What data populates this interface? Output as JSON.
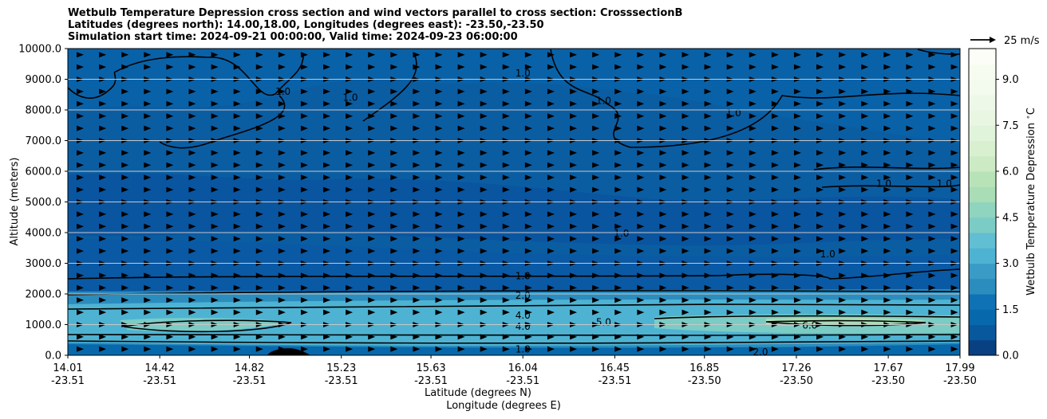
{
  "title": {
    "line1": "Wetbulb Temperature Depression cross section and wind vectors parallel to cross section: CrosssectionB",
    "line2": "Latitudes (degrees north): 14.00,18.00, Longitudes (degrees east): -23.50,-23.50",
    "line3": "Simulation start time: 2024-09-21 00:00:00, Valid time: 2024-09-23 06:00:00"
  },
  "quiver_key_label": "25 m/s",
  "colors": {
    "dark_blue": "#084b8e",
    "mid_blue": "#0868ac",
    "light_blue": "#2b8cbe",
    "cyan": "#4eb3d3",
    "teal": "#7bccc4",
    "green": "#a8ddb5",
    "pale_green": "#e0f3db"
  },
  "chart_data": {
    "type": "heatmap",
    "subtype": "filled contour cross-section with line contours and wind vectors",
    "xlabel": "Latitude (degrees N)",
    "xlabel2": "Longitude (degrees E)",
    "ylabel": "Altitude (meters)",
    "colorbar_label": "Wetbulb Temperature Depression $^\\circ$C",
    "xlim": [
      14.01,
      17.99
    ],
    "ylim": [
      0,
      10000
    ],
    "x_ticks": [
      {
        "lat": "14.01",
        "lon": "-23.51",
        "value": 14.01
      },
      {
        "lat": "14.42",
        "lon": "-23.51",
        "value": 14.42
      },
      {
        "lat": "14.82",
        "lon": "-23.51",
        "value": 14.82
      },
      {
        "lat": "15.23",
        "lon": "-23.51",
        "value": 15.23
      },
      {
        "lat": "15.63",
        "lon": "-23.51",
        "value": 15.63
      },
      {
        "lat": "16.04",
        "lon": "-23.51",
        "value": 16.04
      },
      {
        "lat": "16.45",
        "lon": "-23.51",
        "value": 16.45
      },
      {
        "lat": "16.85",
        "lon": "-23.50",
        "value": 16.85
      },
      {
        "lat": "17.26",
        "lon": "-23.50",
        "value": 17.26
      },
      {
        "lat": "17.67",
        "lon": "-23.50",
        "value": 17.67
      },
      {
        "lat": "17.99",
        "lon": "-23.50",
        "value": 17.99
      }
    ],
    "y_ticks": [
      {
        "label": "0.0",
        "value": 0
      },
      {
        "label": "1000.0",
        "value": 1000
      },
      {
        "label": "2000.0",
        "value": 2000
      },
      {
        "label": "3000.0",
        "value": 3000
      },
      {
        "label": "4000.0",
        "value": 4000
      },
      {
        "label": "5000.0",
        "value": 5000
      },
      {
        "label": "6000.0",
        "value": 6000
      },
      {
        "label": "7000.0",
        "value": 7000
      },
      {
        "label": "8000.0",
        "value": 8000
      },
      {
        "label": "9000.0",
        "value": 9000
      },
      {
        "label": "10000.0",
        "value": 10000
      }
    ],
    "colorbar": {
      "min": 0,
      "max": 10,
      "ticks": [
        {
          "label": "0.0",
          "value": 0
        },
        {
          "label": "1.5",
          "value": 1.5
        },
        {
          "label": "3.0",
          "value": 3.0
        },
        {
          "label": "4.5",
          "value": 4.5
        },
        {
          "label": "6.0",
          "value": 6.0
        },
        {
          "label": "7.5",
          "value": 7.5
        },
        {
          "label": "9.0",
          "value": 9.0
        }
      ],
      "levels": 20,
      "colors": [
        "#084081",
        "#08589e",
        "#0868ac",
        "#0f72b4",
        "#2b8cbe",
        "#3a9bc7",
        "#4eb3d3",
        "#62bed2",
        "#7bccc4",
        "#8fd4bf",
        "#a8ddb5",
        "#b8e3b9",
        "#ccebc5",
        "#d8f0d0",
        "#e0f3db",
        "#e8f6e2",
        "#eef8e8",
        "#f3faee",
        "#f7fcf0",
        "#fbfdf6"
      ]
    },
    "contour_labels": [
      {
        "text": "1.0",
        "x": 16.04,
        "y": 2580
      },
      {
        "text": "2.0",
        "x": 16.04,
        "y": 1950
      },
      {
        "text": "4.0",
        "x": 16.04,
        "y": 1300
      },
      {
        "text": "4.0",
        "x": 16.04,
        "y": 930
      },
      {
        "text": "1.0",
        "x": 16.04,
        "y": 200
      },
      {
        "text": "5.0",
        "x": 16.4,
        "y": 1080
      },
      {
        "text": "6.0",
        "x": 17.32,
        "y": 980
      },
      {
        "text": "2.0",
        "x": 17.1,
        "y": 100
      },
      {
        "text": "1.0",
        "x": 16.04,
        "y": 9200
      },
      {
        "text": "1.0",
        "x": 16.4,
        "y": 8300
      },
      {
        "text": "1.0",
        "x": 16.98,
        "y": 7900
      },
      {
        "text": "1.0",
        "x": 15.27,
        "y": 8400
      },
      {
        "text": "1.0",
        "x": 14.97,
        "y": 8600
      },
      {
        "text": "1.0",
        "x": 17.65,
        "y": 5600
      },
      {
        "text": "1.0",
        "x": 17.92,
        "y": 5600
      },
      {
        "text": "1.0",
        "x": 16.48,
        "y": 3970
      },
      {
        "text": "1.0",
        "x": 17.4,
        "y": 3300
      }
    ],
    "wind_vectors": {
      "direction": "right",
      "altitudes": [
        200,
        600,
        1000,
        1400,
        1800,
        2200,
        2600,
        3000,
        3400,
        3800,
        4200,
        4600,
        5000,
        5400,
        5800,
        6200,
        6600,
        7000,
        7400,
        7800,
        8200,
        8600,
        9000,
        9400,
        9800
      ],
      "lat_start": 14.06,
      "lat_step": 0.1
    }
  }
}
